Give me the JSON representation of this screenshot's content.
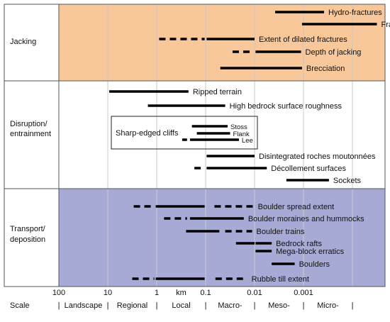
{
  "scale": {
    "ticks": [
      {
        "label": "100",
        "log": 2
      },
      {
        "label": "10",
        "log": 1
      },
      {
        "label": "1",
        "log": 0
      },
      {
        "label": "km",
        "log": -0.5
      },
      {
        "label": "0.1",
        "log": -1
      },
      {
        "label": "0.01",
        "log": -2
      },
      {
        "label": "0.001",
        "log": -3
      }
    ],
    "row_label": "Scale",
    "categories": [
      "Landscape",
      "Regional",
      "Local",
      "Macro-",
      "Meso-",
      "Micro-"
    ]
  },
  "sections": [
    {
      "label_lines": [
        "Jacking"
      ],
      "bg": "#f8c89a"
    },
    {
      "label_lines": [
        "Disruption/",
        "entrainment"
      ],
      "bg": "#ffffff"
    },
    {
      "label_lines": [
        "Transport/",
        "deposition"
      ],
      "bg": "#a8aad6"
    }
  ],
  "box_label": "Sharp-edged cliffs",
  "features": [
    {
      "label": "Hydro-fractures",
      "section": 0,
      "segments": [
        {
          "from": -2.42,
          "to": -3.42,
          "style": "solid"
        }
      ]
    },
    {
      "label": "Fracture apertures/fills",
      "section": 0,
      "segments": [
        {
          "from": -2.97,
          "to": -4.5,
          "style": "solid"
        }
      ]
    },
    {
      "label": "Extent of dilated fractures",
      "section": 0,
      "segments": [
        {
          "from": -0.05,
          "to": -0.98,
          "style": "dashed"
        },
        {
          "from": -1.02,
          "to": -2.0,
          "style": "solid"
        }
      ]
    },
    {
      "label": "Depth of jacking",
      "section": 0,
      "segments": [
        {
          "from": -1.55,
          "to": -1.98,
          "style": "dashed"
        },
        {
          "from": -2.02,
          "to": -2.95,
          "style": "solid"
        }
      ]
    },
    {
      "label": "Brecciation",
      "section": 0,
      "segments": [
        {
          "from": -1.3,
          "to": -2.97,
          "style": "solid"
        }
      ]
    },
    {
      "label": "Ripped terrain",
      "section": 1,
      "segments": [
        {
          "from": 0.97,
          "to": -0.65,
          "style": "solid"
        }
      ]
    },
    {
      "label": "High bedrock surface roughness",
      "section": 1,
      "segments": [
        {
          "from": 0.18,
          "to": -1.4,
          "style": "solid"
        }
      ]
    },
    {
      "label": "Stoss",
      "section": 1,
      "segments": [
        {
          "from": -0.72,
          "to": -1.45,
          "style": "solid"
        }
      ]
    },
    {
      "label": "Flank",
      "section": 1,
      "segments": [
        {
          "from": -0.82,
          "to": -1.5,
          "style": "solid"
        }
      ]
    },
    {
      "label": "Lee",
      "section": 1,
      "segments": [
        {
          "from": -0.52,
          "to": -0.62,
          "style": "solid"
        },
        {
          "from": -0.68,
          "to": -1.68,
          "style": "solid"
        }
      ]
    },
    {
      "label": "Disintegrated roches moutonnées",
      "section": 1,
      "segments": [
        {
          "from": -1.02,
          "to": -2.0,
          "style": "solid"
        }
      ]
    },
    {
      "label": "Décollement surfaces",
      "section": 1,
      "segments": [
        {
          "from": -0.77,
          "to": -0.9,
          "style": "solid"
        },
        {
          "from": -1.02,
          "to": -2.25,
          "style": "solid"
        }
      ]
    },
    {
      "label": "Sockets",
      "section": 1,
      "segments": [
        {
          "from": -2.65,
          "to": -3.52,
          "style": "solid"
        }
      ]
    },
    {
      "label": "Boulder spread extent",
      "section": 2,
      "segments": [
        {
          "from": 0.47,
          "to": 0.05,
          "style": "dashed"
        },
        {
          "from": 0.02,
          "to": -0.98,
          "style": "solid"
        },
        {
          "from": -1.18,
          "to": -1.98,
          "style": "dashed"
        }
      ]
    },
    {
      "label": "Boulder moraines and hummocks",
      "section": 2,
      "segments": [
        {
          "from": -0.15,
          "to": -0.62,
          "style": "dashed"
        },
        {
          "from": -0.68,
          "to": -1.78,
          "style": "solid"
        }
      ]
    },
    {
      "label": "Boulder trains",
      "section": 2,
      "segments": [
        {
          "from": -0.6,
          "to": -1.28,
          "style": "solid"
        },
        {
          "from": -1.4,
          "to": -1.95,
          "style": "dashed"
        }
      ]
    },
    {
      "label": "Bedrock rafts",
      "section": 2,
      "segments": [
        {
          "from": -1.62,
          "to": -2.0,
          "style": "solid"
        },
        {
          "from": -2.02,
          "to": -2.35,
          "style": "solid"
        }
      ]
    },
    {
      "label": "Mega-block erratics",
      "section": 2,
      "segments": [
        {
          "from": -2.02,
          "to": -2.35,
          "style": "solid"
        }
      ]
    },
    {
      "label": "Boulders",
      "section": 2,
      "segments": [
        {
          "from": -2.35,
          "to": -2.82,
          "style": "solid"
        }
      ]
    },
    {
      "label": "Rubble till extent",
      "section": 2,
      "segments": [
        {
          "from": 0.5,
          "to": 0.05,
          "style": "dashed"
        },
        {
          "from": 0.02,
          "to": -0.98,
          "style": "solid"
        },
        {
          "from": -1.2,
          "to": -1.85,
          "style": "dashed"
        }
      ]
    }
  ]
}
